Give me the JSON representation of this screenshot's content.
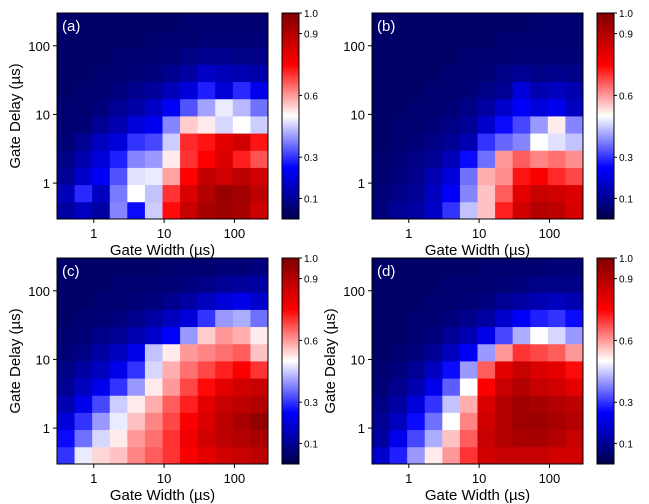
{
  "chart_data": [
    {
      "type": "heatmap",
      "panel_label": "(a)",
      "xlabel": "Gate Width (µs)",
      "ylabel": "Gate Delay (µs)",
      "xscale": "log",
      "yscale": "log",
      "x_ticks": [
        1,
        10,
        100
      ],
      "x_tick_labels": [
        "1",
        "10",
        "100"
      ],
      "y_ticks": [
        1,
        10,
        100
      ],
      "y_tick_labels": [
        "1",
        "10",
        "100"
      ],
      "colorbar": {
        "range": [
          0.0,
          1.0
        ],
        "ticks": [
          0.1,
          0.3,
          0.6,
          0.9,
          1.0
        ],
        "tick_labels": [
          "0.1",
          "0.3",
          "0.6",
          "0.9",
          "1.0"
        ],
        "colormap": "seismic"
      },
      "grid_shape": [
        12,
        12
      ],
      "z": [
        [
          0.12,
          0.16,
          0.12,
          0.38,
          0.26,
          0.45,
          0.74,
          0.86,
          0.92,
          0.94,
          0.92,
          0.85
        ],
        [
          0.15,
          0.29,
          0.16,
          0.37,
          0.5,
          0.44,
          0.7,
          0.82,
          0.9,
          0.95,
          0.93,
          0.88
        ],
        [
          0.1,
          0.18,
          0.24,
          0.33,
          0.47,
          0.48,
          0.59,
          0.75,
          0.87,
          0.84,
          0.88,
          0.84
        ],
        [
          0.08,
          0.14,
          0.2,
          0.28,
          0.38,
          0.4,
          0.52,
          0.7,
          0.75,
          0.82,
          0.72,
          0.67
        ],
        [
          0.06,
          0.1,
          0.16,
          0.2,
          0.3,
          0.32,
          0.45,
          0.71,
          0.73,
          0.8,
          0.84,
          0.73
        ],
        [
          0.05,
          0.06,
          0.1,
          0.14,
          0.2,
          0.23,
          0.38,
          0.55,
          0.52,
          0.46,
          0.5,
          0.45
        ],
        [
          0.05,
          0.05,
          0.07,
          0.1,
          0.13,
          0.17,
          0.24,
          0.33,
          0.41,
          0.48,
          0.43,
          0.36
        ],
        [
          0.04,
          0.05,
          0.05,
          0.07,
          0.09,
          0.11,
          0.15,
          0.2,
          0.28,
          0.19,
          0.29,
          0.22
        ],
        [
          0.04,
          0.04,
          0.05,
          0.05,
          0.06,
          0.07,
          0.09,
          0.12,
          0.17,
          0.15,
          0.14,
          0.13
        ],
        [
          0.04,
          0.04,
          0.04,
          0.05,
          0.05,
          0.05,
          0.06,
          0.08,
          0.09,
          0.09,
          0.08,
          0.08
        ],
        [
          0.04,
          0.04,
          0.04,
          0.04,
          0.04,
          0.05,
          0.05,
          0.05,
          0.06,
          0.06,
          0.06,
          0.06
        ],
        [
          0.04,
          0.04,
          0.04,
          0.04,
          0.04,
          0.04,
          0.04,
          0.05,
          0.05,
          0.05,
          0.05,
          0.05
        ]
      ]
    },
    {
      "type": "heatmap",
      "panel_label": "(b)",
      "xlabel": "Gate Width (µs)",
      "ylabel": "",
      "xscale": "log",
      "yscale": "log",
      "x_ticks": [
        1,
        10,
        100
      ],
      "x_tick_labels": [
        "1",
        "10",
        "100"
      ],
      "y_ticks": [
        1,
        10,
        100
      ],
      "y_tick_labels": [
        "1",
        "10",
        "100"
      ],
      "colorbar": {
        "range": [
          0.0,
          1.0
        ],
        "ticks": [
          0.1,
          0.3,
          0.6,
          0.9,
          1.0
        ],
        "tick_labels": [
          "0.1",
          "0.3",
          "0.6",
          "0.9",
          "1.0"
        ],
        "colormap": "seismic"
      },
      "grid_shape": [
        12,
        12
      ],
      "z": [
        [
          0.07,
          0.1,
          0.12,
          0.17,
          0.3,
          0.44,
          0.56,
          0.72,
          0.84,
          0.9,
          0.88,
          0.83
        ],
        [
          0.06,
          0.08,
          0.1,
          0.16,
          0.24,
          0.38,
          0.56,
          0.66,
          0.8,
          0.86,
          0.84,
          0.82
        ],
        [
          0.05,
          0.07,
          0.09,
          0.14,
          0.2,
          0.36,
          0.58,
          0.61,
          0.73,
          0.76,
          0.71,
          0.68
        ],
        [
          0.05,
          0.06,
          0.08,
          0.1,
          0.15,
          0.26,
          0.36,
          0.6,
          0.66,
          0.62,
          0.64,
          0.61
        ],
        [
          0.04,
          0.05,
          0.06,
          0.08,
          0.1,
          0.14,
          0.3,
          0.35,
          0.38,
          0.5,
          0.47,
          0.44
        ],
        [
          0.04,
          0.05,
          0.05,
          0.06,
          0.08,
          0.1,
          0.18,
          0.26,
          0.32,
          0.4,
          0.52,
          0.38
        ],
        [
          0.04,
          0.04,
          0.05,
          0.05,
          0.06,
          0.08,
          0.12,
          0.18,
          0.24,
          0.2,
          0.22,
          0.16
        ],
        [
          0.04,
          0.04,
          0.04,
          0.05,
          0.05,
          0.06,
          0.08,
          0.1,
          0.2,
          0.14,
          0.16,
          0.14
        ],
        [
          0.04,
          0.04,
          0.04,
          0.04,
          0.05,
          0.05,
          0.06,
          0.08,
          0.1,
          0.08,
          0.09,
          0.08
        ],
        [
          0.04,
          0.04,
          0.04,
          0.04,
          0.04,
          0.05,
          0.05,
          0.05,
          0.06,
          0.06,
          0.06,
          0.06
        ],
        [
          0.04,
          0.04,
          0.04,
          0.04,
          0.04,
          0.04,
          0.04,
          0.05,
          0.05,
          0.05,
          0.05,
          0.05
        ],
        [
          0.04,
          0.04,
          0.04,
          0.04,
          0.04,
          0.04,
          0.04,
          0.04,
          0.04,
          0.05,
          0.05,
          0.05
        ]
      ]
    },
    {
      "type": "heatmap",
      "panel_label": "(c)",
      "xlabel": "Gate Width (µs)",
      "ylabel": "Gate Delay (µs)",
      "xscale": "log",
      "yscale": "log",
      "x_ticks": [
        1,
        10,
        100
      ],
      "x_tick_labels": [
        "1",
        "10",
        "100"
      ],
      "y_ticks": [
        1,
        10,
        100
      ],
      "y_tick_labels": [
        "1",
        "10",
        "100"
      ],
      "colorbar": {
        "range": [
          0.0,
          1.0
        ],
        "ticks": [
          0.1,
          0.3,
          0.6,
          0.9,
          1.0
        ],
        "tick_labels": [
          "0.1",
          "0.3",
          "0.6",
          "0.9",
          "1.0"
        ],
        "colormap": "seismic"
      },
      "grid_shape": [
        12,
        12
      ],
      "z": [
        [
          0.3,
          0.48,
          0.54,
          0.56,
          0.62,
          0.66,
          0.7,
          0.76,
          0.8,
          0.84,
          0.86,
          0.88
        ],
        [
          0.26,
          0.36,
          0.46,
          0.52,
          0.6,
          0.64,
          0.7,
          0.78,
          0.84,
          0.88,
          0.9,
          0.92
        ],
        [
          0.2,
          0.3,
          0.4,
          0.48,
          0.56,
          0.62,
          0.68,
          0.76,
          0.82,
          0.88,
          0.92,
          0.96
        ],
        [
          0.14,
          0.22,
          0.32,
          0.45,
          0.52,
          0.58,
          0.66,
          0.72,
          0.8,
          0.86,
          0.88,
          0.9
        ],
        [
          0.1,
          0.16,
          0.22,
          0.3,
          0.4,
          0.52,
          0.6,
          0.68,
          0.74,
          0.8,
          0.84,
          0.86
        ],
        [
          0.08,
          0.12,
          0.16,
          0.22,
          0.3,
          0.46,
          0.58,
          0.64,
          0.68,
          0.72,
          0.76,
          0.7
        ],
        [
          0.06,
          0.08,
          0.12,
          0.16,
          0.22,
          0.44,
          0.52,
          0.6,
          0.62,
          0.64,
          0.66,
          0.56
        ],
        [
          0.05,
          0.06,
          0.08,
          0.1,
          0.14,
          0.18,
          0.25,
          0.4,
          0.55,
          0.6,
          0.58,
          0.52
        ],
        [
          0.04,
          0.05,
          0.06,
          0.07,
          0.09,
          0.12,
          0.16,
          0.2,
          0.3,
          0.4,
          0.42,
          0.36
        ],
        [
          0.04,
          0.04,
          0.05,
          0.05,
          0.06,
          0.07,
          0.09,
          0.12,
          0.16,
          0.2,
          0.22,
          0.18
        ],
        [
          0.04,
          0.04,
          0.04,
          0.05,
          0.05,
          0.05,
          0.06,
          0.07,
          0.08,
          0.1,
          0.11,
          0.12
        ],
        [
          0.04,
          0.04,
          0.04,
          0.04,
          0.04,
          0.04,
          0.05,
          0.05,
          0.05,
          0.06,
          0.06,
          0.07
        ]
      ]
    },
    {
      "type": "heatmap",
      "panel_label": "(d)",
      "xlabel": "Gate Width (µs)",
      "ylabel": "Gate Delay (µs)",
      "xscale": "log",
      "yscale": "log",
      "x_ticks": [
        1,
        10,
        100
      ],
      "x_tick_labels": [
        "1",
        "10",
        "100"
      ],
      "y_ticks": [
        1,
        10,
        100
      ],
      "y_tick_labels": [
        "1",
        "10",
        "100"
      ],
      "colorbar": {
        "range": [
          0.0,
          1.0
        ],
        "ticks": [
          0.1,
          0.3,
          0.6,
          0.9,
          1.0
        ],
        "tick_labels": [
          "0.1",
          "0.3",
          "0.6",
          "0.9",
          "1.0"
        ],
        "colormap": "seismic"
      },
      "grid_shape": [
        12,
        12
      ],
      "z": [
        [
          0.18,
          0.28,
          0.4,
          0.52,
          0.6,
          0.7,
          0.84,
          0.86,
          0.86,
          0.86,
          0.84,
          0.84
        ],
        [
          0.12,
          0.22,
          0.32,
          0.42,
          0.56,
          0.66,
          0.86,
          0.9,
          0.92,
          0.92,
          0.9,
          0.86
        ],
        [
          0.1,
          0.16,
          0.26,
          0.36,
          0.5,
          0.62,
          0.84,
          0.9,
          0.94,
          0.94,
          0.92,
          0.9
        ],
        [
          0.08,
          0.12,
          0.2,
          0.3,
          0.44,
          0.58,
          0.82,
          0.9,
          0.94,
          0.92,
          0.9,
          0.88
        ],
        [
          0.06,
          0.09,
          0.14,
          0.22,
          0.34,
          0.5,
          0.76,
          0.86,
          0.9,
          0.86,
          0.84,
          0.8
        ],
        [
          0.05,
          0.07,
          0.1,
          0.16,
          0.26,
          0.4,
          0.66,
          0.8,
          0.86,
          0.82,
          0.8,
          0.74
        ],
        [
          0.04,
          0.05,
          0.07,
          0.1,
          0.16,
          0.24,
          0.4,
          0.6,
          0.7,
          0.68,
          0.66,
          0.6
        ],
        [
          0.04,
          0.04,
          0.05,
          0.07,
          0.1,
          0.14,
          0.22,
          0.32,
          0.42,
          0.5,
          0.46,
          0.4
        ],
        [
          0.04,
          0.04,
          0.05,
          0.05,
          0.07,
          0.09,
          0.12,
          0.18,
          0.24,
          0.28,
          0.3,
          0.26
        ],
        [
          0.04,
          0.04,
          0.04,
          0.05,
          0.05,
          0.06,
          0.07,
          0.1,
          0.12,
          0.14,
          0.16,
          0.14
        ],
        [
          0.04,
          0.04,
          0.04,
          0.04,
          0.05,
          0.05,
          0.05,
          0.06,
          0.07,
          0.08,
          0.08,
          0.08
        ],
        [
          0.04,
          0.04,
          0.04,
          0.04,
          0.04,
          0.04,
          0.05,
          0.05,
          0.05,
          0.05,
          0.06,
          0.06
        ]
      ]
    }
  ]
}
